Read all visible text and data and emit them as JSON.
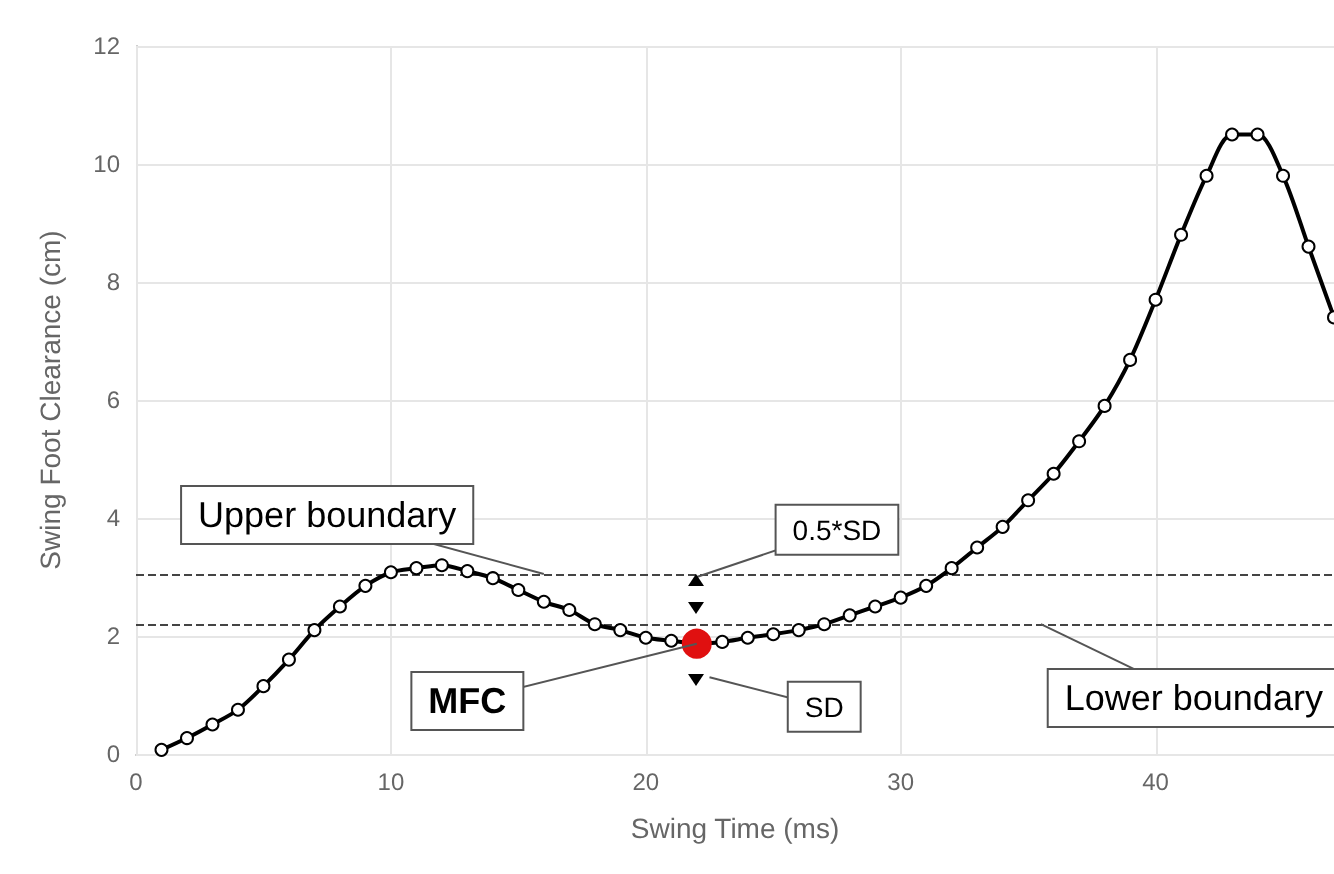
{
  "chart_data": {
    "type": "line",
    "xlabel": "Swing Time (ms)",
    "ylabel": "Swing Foot Clearance (cm)",
    "x": [
      1,
      2,
      3,
      4,
      5,
      6,
      7,
      8,
      9,
      10,
      11,
      12,
      13,
      14,
      15,
      16,
      17,
      18,
      19,
      20,
      21,
      22,
      23,
      24,
      25,
      26,
      27,
      28,
      29,
      30,
      31,
      32,
      33,
      34,
      35,
      36,
      37,
      38,
      39,
      40,
      41,
      42,
      43,
      44,
      45,
      46,
      47
    ],
    "series": [
      {
        "color": "#000000",
        "values": [
          0.07,
          0.27,
          0.5,
          0.75,
          1.15,
          1.6,
          2.1,
          2.5,
          2.85,
          3.08,
          3.15,
          3.2,
          3.1,
          2.98,
          2.78,
          2.58,
          2.44,
          2.2,
          2.1,
          1.97,
          1.92,
          1.87,
          1.9,
          1.97,
          2.03,
          2.1,
          2.2,
          2.35,
          2.5,
          2.65,
          2.85,
          3.15,
          3.5,
          3.85,
          4.3,
          4.75,
          5.3,
          5.9,
          6.68,
          7.7,
          8.8,
          9.8,
          10.5,
          10.5,
          9.8,
          8.6,
          7.4
        ],
        "colors": [
          "#ffffff",
          "#ffffff",
          "#ffffff",
          "#ffffff",
          "#ffffff",
          "#ffffff",
          "#ffffff",
          "#ffffff",
          "#ffffff",
          "#ffffff",
          "#ffffff",
          "#ffffff",
          "#ffffff",
          "#ffffff",
          "#ffffff",
          "#ffffff",
          "#ffffff",
          "#ffffff",
          "#ffffff",
          "#ffffff",
          "#ffffff",
          "#e01010",
          "#ffffff",
          "#ffffff",
          "#ffffff",
          "#ffffff",
          "#ffffff",
          "#ffffff",
          "#ffffff",
          "#ffffff",
          "#ffffff",
          "#ffffff",
          "#ffffff",
          "#ffffff",
          "#ffffff",
          "#ffffff",
          "#ffffff",
          "#ffffff",
          "#ffffff",
          "#ffffff",
          "#ffffff",
          "#ffffff",
          "#ffffff",
          "#ffffff",
          "#ffffff",
          "#ffffff",
          "#ffffff"
        ]
      }
    ],
    "xlim": [
      0,
      47
    ],
    "xticks": [
      0,
      10,
      20,
      30,
      40
    ],
    "ylim": [
      0,
      12
    ],
    "yticks": [
      0,
      2,
      4,
      6,
      8,
      10,
      12
    ],
    "grid": true,
    "marker": "circle",
    "line_style": "solid",
    "ref_lines": [
      {
        "axis": "y",
        "value": 3.05,
        "label": "Upper boundary",
        "color": "#444444",
        "line_style": "dashed"
      },
      {
        "axis": "y",
        "value": 2.2,
        "label": "Lower boundary",
        "color": "#444444",
        "line_style": "dashed"
      }
    ],
    "annotations": [
      {
        "text": "MFC",
        "x": 22,
        "y": 1.87
      },
      {
        "text": "0.5*SD",
        "x": 22,
        "y": 3.0
      },
      "SD"
    ]
  }
}
